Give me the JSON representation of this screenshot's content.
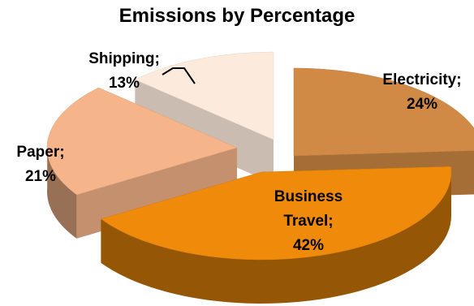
{
  "chart_data": {
    "type": "pie",
    "title": "Emissions by Percentage",
    "slices": [
      {
        "label": "Electricity",
        "value": 24,
        "display": "24%",
        "color": "#D08A45"
      },
      {
        "label": "Business Travel",
        "value": 42,
        "display": "42%",
        "color": "#F08A0A"
      },
      {
        "label": "Paper",
        "value": 21,
        "display": "21%",
        "color": "#F5B48A"
      },
      {
        "label": "Shipping",
        "value": 13,
        "display": "13%",
        "color": "#FCEBDD"
      }
    ],
    "legend": "none",
    "three_d": true,
    "exploded": true
  }
}
